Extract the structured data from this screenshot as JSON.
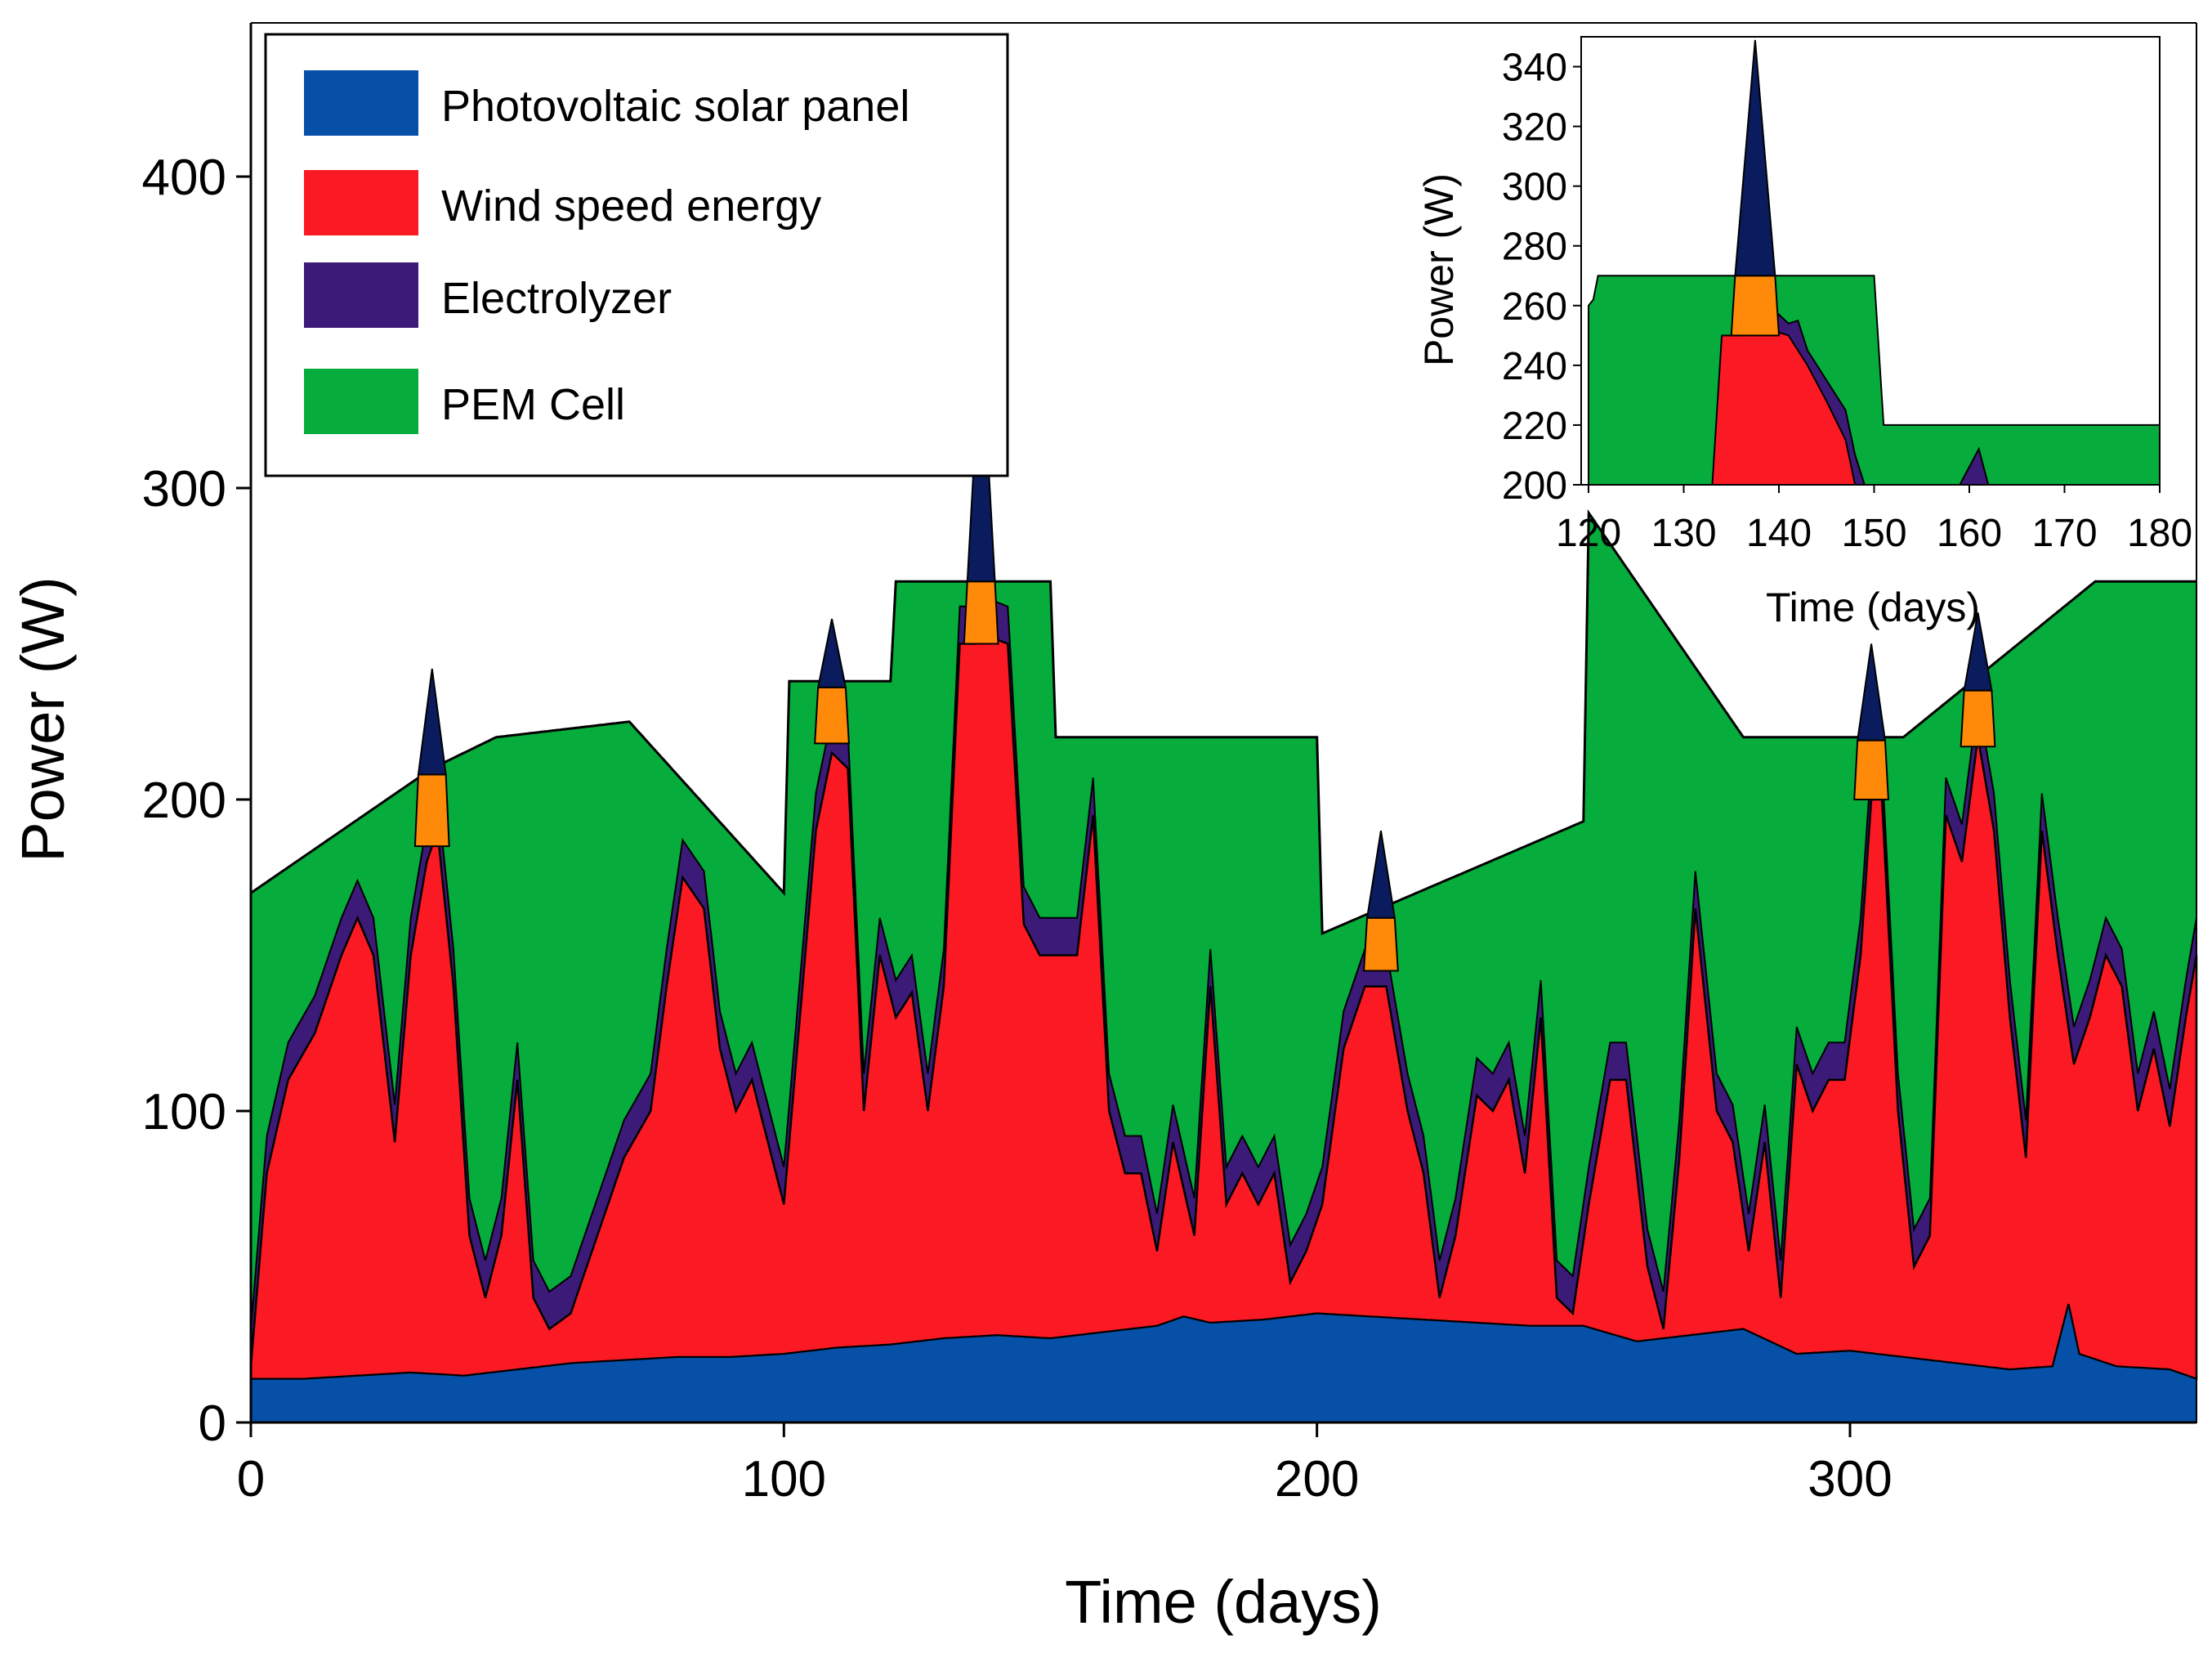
{
  "colors": {
    "pv": "#0650a8",
    "wind": "#fb1924",
    "electrolyzer": "#3b1a78",
    "pem": "#06ad3c",
    "surplus": "#ff8a0a",
    "pv_peak": "#0a1c5e",
    "outline": "#000000"
  },
  "chart_data": [
    {
      "type": "area",
      "title": "",
      "xlabel": "Time (days)",
      "ylabel": "Power (W)",
      "xlim": [
        0,
        365
      ],
      "ylim": [
        0,
        450
      ],
      "xticks": [
        0,
        100,
        200,
        300
      ],
      "yticks": [
        0,
        100,
        200,
        300,
        400
      ],
      "legend_position": "top-left",
      "legend": [
        {
          "name": "Photovoltaic solar panel",
          "color_key": "pv"
        },
        {
          "name": "Wind speed energy",
          "color_key": "wind"
        },
        {
          "name": "Electrolyzer",
          "color_key": "electrolyzer"
        },
        {
          "name": "PEM Cell",
          "color_key": "pem"
        }
      ],
      "series": [
        {
          "name": "Photovoltaic solar panel",
          "x": [
            0,
            10,
            20,
            30,
            40,
            50,
            60,
            70,
            80,
            90,
            100,
            110,
            120,
            130,
            140,
            150,
            160,
            170,
            175,
            180,
            190,
            200,
            210,
            220,
            230,
            240,
            250,
            260,
            270,
            280,
            290,
            300,
            310,
            320,
            330,
            338,
            341,
            343,
            350,
            360,
            365
          ],
          "values": [
            14,
            14,
            15,
            16,
            15,
            17,
            19,
            20,
            21,
            21,
            22,
            24,
            25,
            27,
            28,
            27,
            29,
            31,
            34,
            32,
            33,
            35,
            34,
            33,
            32,
            31,
            31,
            26,
            28,
            30,
            22,
            23,
            21,
            19,
            17,
            18,
            38,
            22,
            18,
            17,
            14
          ]
        },
        {
          "name": "Wind speed energy (top)",
          "x": [
            0,
            3,
            7,
            12,
            17,
            20,
            23,
            27,
            30,
            33,
            35,
            38,
            41,
            44,
            47,
            50,
            53,
            56,
            60,
            65,
            70,
            75,
            78,
            81,
            85,
            88,
            91,
            94,
            97,
            100,
            103,
            106,
            109,
            112,
            115,
            118,
            121,
            124,
            127,
            130,
            133,
            136,
            139,
            142,
            145,
            148,
            151,
            155,
            158,
            161,
            164,
            167,
            170,
            173,
            177,
            180,
            183,
            186,
            189,
            192,
            195,
            198,
            201,
            205,
            209,
            213,
            217,
            220,
            223,
            226,
            230,
            233,
            236,
            239,
            242,
            245,
            248,
            251,
            255,
            258,
            262,
            265,
            268,
            271,
            275,
            278,
            281,
            284,
            287,
            290,
            293,
            296,
            299,
            302,
            304,
            306,
            309,
            312,
            315,
            318,
            321,
            324,
            327,
            330,
            333,
            336,
            339,
            342,
            345,
            348,
            351,
            354,
            357,
            360,
            363,
            365
          ],
          "values": [
            18,
            80,
            110,
            125,
            150,
            162,
            150,
            90,
            150,
            180,
            190,
            140,
            60,
            40,
            60,
            110,
            40,
            30,
            35,
            60,
            85,
            100,
            140,
            175,
            165,
            120,
            100,
            110,
            90,
            70,
            130,
            190,
            215,
            210,
            100,
            150,
            130,
            138,
            100,
            140,
            250,
            250,
            252,
            250,
            160,
            150,
            150,
            150,
            195,
            100,
            80,
            80,
            55,
            90,
            60,
            140,
            70,
            80,
            70,
            80,
            45,
            55,
            70,
            120,
            140,
            140,
            100,
            80,
            40,
            60,
            105,
            100,
            110,
            80,
            130,
            40,
            35,
            70,
            110,
            110,
            50,
            30,
            85,
            165,
            100,
            90,
            55,
            90,
            40,
            115,
            100,
            110,
            110,
            150,
            200,
            200,
            100,
            50,
            60,
            195,
            180,
            220,
            190,
            130,
            85,
            190,
            150,
            115,
            130,
            150,
            140,
            100,
            120,
            95,
            130,
            150
          ]
        },
        {
          "name": "PEM Cell (top)",
          "x": [
            0,
            34,
            46,
            71,
            100,
            101,
            119,
            120,
            121,
            150,
            151,
            200,
            201,
            250,
            251,
            280,
            310,
            346,
            365
          ],
          "values": [
            170,
            210,
            220,
            225,
            170,
            238,
            238,
            238,
            270,
            270,
            220,
            220,
            157,
            193,
            292,
            220,
            220,
            270,
            270
          ]
        },
        {
          "name": "Electrolyzer band",
          "offset_above_wind": 12
        }
      ],
      "peaks": [
        {
          "x": 34,
          "base": 185,
          "surplus_top": 208,
          "top": 242
        },
        {
          "x": 109,
          "base": 218,
          "surplus_top": 236,
          "top": 258
        },
        {
          "x": 137,
          "base": 250,
          "surplus_top": 270,
          "top": 350
        },
        {
          "x": 212,
          "base": 145,
          "surplus_top": 162,
          "top": 190
        },
        {
          "x": 304,
          "base": 200,
          "surplus_top": 219,
          "top": 250
        },
        {
          "x": 324,
          "base": 217,
          "surplus_top": 235,
          "top": 260
        }
      ]
    },
    {
      "type": "area",
      "title": "",
      "xlabel": "Time (days)",
      "ylabel": "Power (W)",
      "xlim": [
        120,
        180
      ],
      "ylim": [
        200,
        350
      ],
      "xticks": [
        120,
        130,
        140,
        150,
        160,
        170,
        180
      ],
      "yticks": [
        200,
        220,
        240,
        260,
        280,
        300,
        320,
        340
      ],
      "placement": "top-right inset",
      "series": [
        {
          "name": "PEM Cell (top)",
          "x": [
            120,
            120.5,
            121,
            150,
            151,
            180
          ],
          "values": [
            260,
            262,
            270,
            270,
            220,
            220
          ]
        },
        {
          "name": "Wind speed energy (top)",
          "x": [
            133,
            134,
            136,
            139,
            141,
            143,
            145,
            147,
            148
          ],
          "values": [
            200,
            250,
            250,
            252,
            250,
            240,
            228,
            215,
            200
          ]
        },
        {
          "name": "Electrolyzer (top)",
          "x": [
            139,
            141,
            142,
            143,
            145,
            147,
            148,
            149
          ],
          "values": [
            260,
            254,
            255,
            245,
            235,
            225,
            210,
            200
          ]
        },
        {
          "name": "Electrolyzer spike",
          "x": [
            159,
            161,
            162
          ],
          "values": [
            200,
            212,
            200
          ]
        }
      ],
      "peak": {
        "x_left": 135,
        "x_right": 140,
        "apex_x": 137.5,
        "base": 250,
        "surplus_top": 270,
        "top": 350
      }
    }
  ]
}
